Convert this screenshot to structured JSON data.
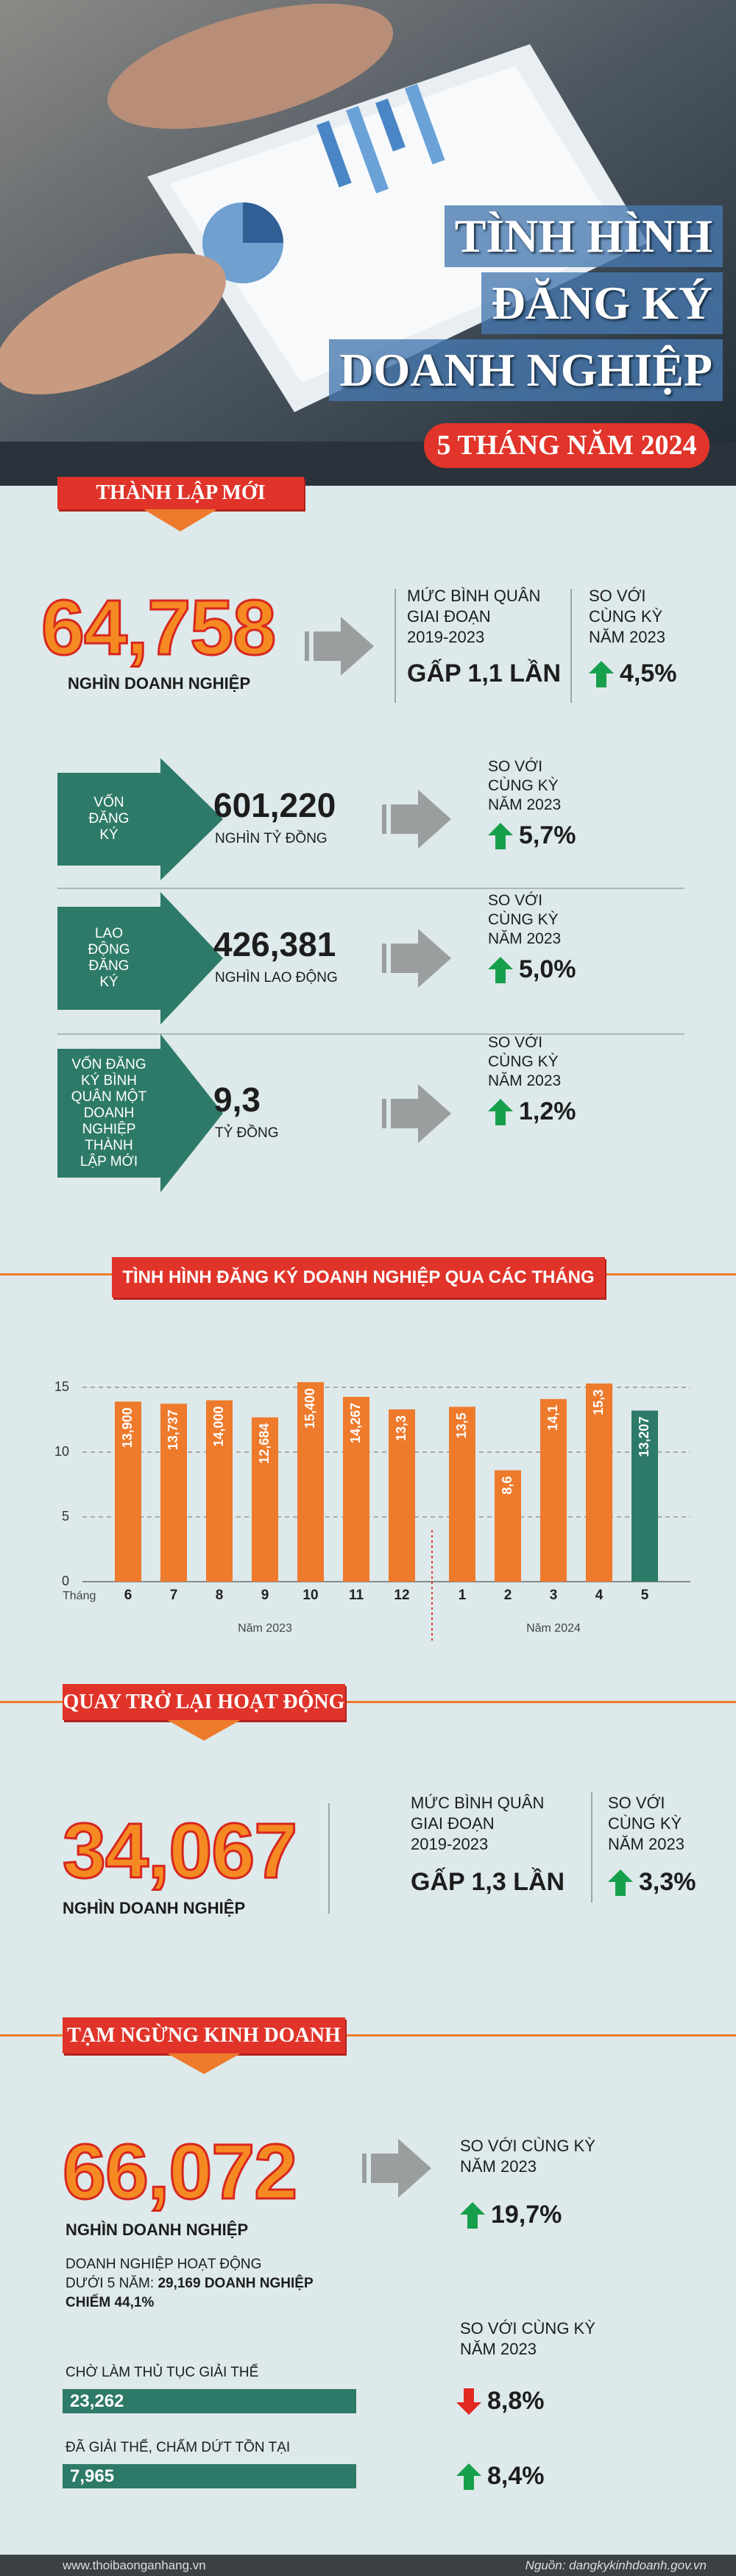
{
  "header": {
    "title_lines": [
      "TÌNH HÌNH",
      "ĐĂNG KÝ",
      "DOANH NGHIỆP"
    ],
    "subtitle": "5 THÁNG NĂM 2024"
  },
  "new_business": {
    "banner": "THÀNH LẬP MỚI",
    "value": "64,758",
    "unit": "NGHÌN DOANH NGHIỆP",
    "avg_label_lines": [
      "MỨC BÌNH QUÂN",
      "GIAI ĐOẠN",
      "2019-2023"
    ],
    "avg_value": "GẤP 1,1 LẦN",
    "compare_lines": [
      "SO VỚI",
      "CÙNG KỲ",
      "NĂM 2023"
    ],
    "compare_value": "4,5%"
  },
  "metrics": [
    {
      "label_lines": [
        "VỐN",
        "ĐĂNG",
        "KÝ"
      ],
      "value": "601,220",
      "unit": "NGHÌN TỶ ĐỒNG",
      "compare_lines": [
        "SO VỚI",
        "CÙNG KỲ",
        "NĂM 2023"
      ],
      "change": "5,7%"
    },
    {
      "label_lines": [
        "LAO",
        "ĐỘNG",
        "ĐĂNG",
        "KÝ"
      ],
      "value": "426,381",
      "unit": "NGHÌN LAO ĐỘNG",
      "compare_lines": [
        "SO VỚI",
        "CÙNG KỲ",
        "NĂM 2023"
      ],
      "change": "5,0%"
    },
    {
      "label_lines": [
        "VỐN ĐĂNG",
        "KÝ BÌNH",
        "QUÂN MỘT",
        "DOANH",
        "NGHIỆP",
        "THÀNH",
        "LẬP MỚI"
      ],
      "value": "9,3",
      "unit": "TỶ ĐỒNG",
      "compare_lines": [
        "SO VỚI",
        "CÙNG KỲ",
        "NĂM 2023"
      ],
      "change": "1,2%"
    }
  ],
  "chart_data": {
    "type": "bar",
    "title": "TÌNH HÌNH ĐĂNG KÝ DOANH NGHIỆP QUA CÁC THÁNG",
    "x_label": "Tháng",
    "group_labels": [
      "Năm 2023",
      "Năm 2024"
    ],
    "categories": [
      "6",
      "7",
      "8",
      "9",
      "10",
      "11",
      "12",
      "1",
      "2",
      "3",
      "4",
      "5"
    ],
    "values": [
      13.9,
      13.737,
      14.0,
      12.684,
      15.4,
      14.267,
      13.3,
      13.5,
      8.6,
      14.1,
      15.3,
      13.207
    ],
    "value_labels": [
      "13,900",
      "13,737",
      "14,000",
      "12,684",
      "15,400",
      "14,267",
      "13,3",
      "13,5",
      "8,6",
      "14,1",
      "15,3",
      "13,207"
    ],
    "colors": [
      "#ee7a2c",
      "#ee7a2c",
      "#ee7a2c",
      "#ee7a2c",
      "#ee7a2c",
      "#ee7a2c",
      "#ee7a2c",
      "#ee7a2c",
      "#ee7a2c",
      "#ee7a2c",
      "#ee7a2c",
      "#2e7a68"
    ],
    "ylim": [
      0,
      17.5
    ],
    "yticks": [
      0,
      5,
      10,
      15
    ],
    "grid": true
  },
  "resumed": {
    "banner": "QUAY TRỞ LẠI HOẠT ĐỘNG",
    "value": "34,067",
    "unit": "NGHÌN DOANH NGHIỆP",
    "avg_label_lines": [
      "MỨC BÌNH QUÂN",
      "GIAI ĐOẠN",
      "2019-2023"
    ],
    "avg_value": "GẤP 1,3 LẦN",
    "compare_lines": [
      "SO VỚI",
      "CÙNG KỲ",
      "NĂM 2023"
    ],
    "compare_value": "3,3%"
  },
  "suspended": {
    "banner": "TẠM NGỪNG KINH DOANH",
    "value": "66,072",
    "unit": "NGHÌN DOANH NGHIỆP",
    "compare_lines": [
      "SO VỚI CÙNG KỲ",
      "NĂM 2023"
    ],
    "change": "19,7%",
    "young_note": {
      "line1": "DOANH NGHIỆP HOẠT ĐỘNG",
      "line2_prefix": "DƯỚI 5 NĂM:",
      "line2_bold": "29,169 DOANH NGHIỆP",
      "line3": "CHIẾM 44,1%"
    },
    "compare2_lines": [
      "SO VỚI CÙNG KỲ",
      "NĂM 2023"
    ],
    "items": [
      {
        "label": "CHỜ LÀM THỦ TỤC GIẢI THỂ",
        "value": "23,262",
        "change": "8,8%",
        "direction": "down"
      },
      {
        "label": "ĐÃ GIẢI THỂ, CHẤM DỨT TỒN TẠI",
        "value": "7,965",
        "change": "8,4%",
        "direction": "up"
      }
    ]
  },
  "footer": {
    "website": "www.thoibaonganhang.vn",
    "source": "Nguồn: dangkykinhdoanh.gov.vn"
  }
}
